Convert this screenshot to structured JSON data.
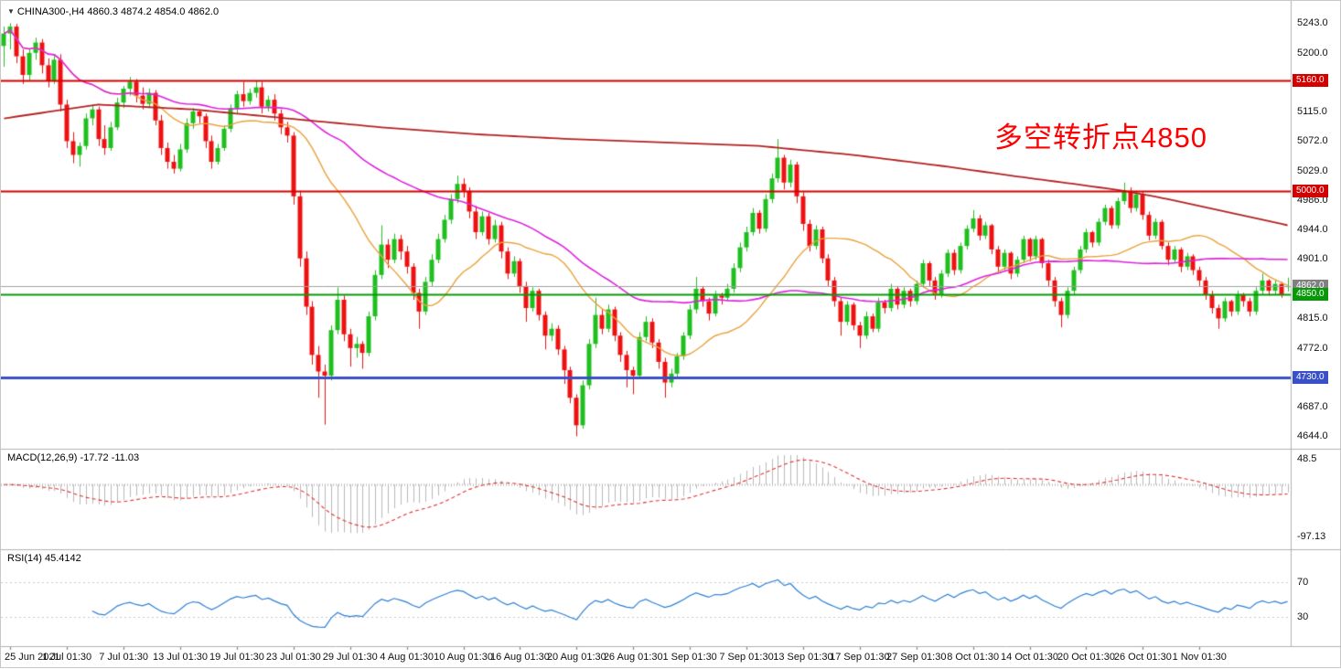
{
  "header": {
    "text": "CHINA300-,H4  4860.3 4874.2 4854.0 4862.0"
  },
  "annotation": {
    "text": "多空转折点4850",
    "color": "#FF0000"
  },
  "macd": {
    "header": "MACD(12,26,9) -17.72 -11.03",
    "axis_max": "48.5",
    "axis_min": "-97.13"
  },
  "rsi": {
    "header": "RSI(14) 45.4142",
    "axis_top": "70",
    "axis_bottom": "30"
  },
  "chart_data": {
    "type": "candlestick",
    "symbol": "CHINA300-",
    "timeframe": "H4",
    "current_bar": {
      "open": 4860.3,
      "high": 4874.2,
      "low": 4854.0,
      "close": 4862.0
    },
    "ylim": [
      4630,
      5270
    ],
    "y_ticks": [
      5243.0,
      5200.0,
      5115.0,
      5072.0,
      5029.0,
      4986.0,
      4944.0,
      4901.0,
      4815.0,
      4772.0,
      4687.0,
      4644.0
    ],
    "price_tags": [
      {
        "value": 5160.0,
        "label": "5160.0",
        "color": "#d40000",
        "line_width": 2
      },
      {
        "value": 5000.0,
        "label": "5000.0",
        "color": "#d40000",
        "line_width": 2
      },
      {
        "value": 4862.0,
        "label": "4862.0",
        "color": "#808080",
        "line_width": 1
      },
      {
        "value": 4850.0,
        "label": "4850.0",
        "color": "#089908",
        "line_width": 2
      },
      {
        "value": 4730.0,
        "label": "4730.0",
        "color": "#3a50c8",
        "line_width": 3
      }
    ],
    "x_labels": [
      {
        "index": 1,
        "label": "25 Jun 2021"
      },
      {
        "index": 10,
        "label": "1 Jul 01:30"
      },
      {
        "index": 19,
        "label": "7 Jul 01:30"
      },
      {
        "index": 28,
        "label": "13 Jul 01:30"
      },
      {
        "index": 37,
        "label": "19 Jul 01:30"
      },
      {
        "index": 46,
        "label": "23 Jul 01:30"
      },
      {
        "index": 55,
        "label": "29 Jul 01:30"
      },
      {
        "index": 64,
        "label": "4 Aug 01:30"
      },
      {
        "index": 73,
        "label": "10 Aug 01:30"
      },
      {
        "index": 82,
        "label": "16 Aug 01:30"
      },
      {
        "index": 91,
        "label": "20 Aug 01:30"
      },
      {
        "index": 100,
        "label": "26 Aug 01:30"
      },
      {
        "index": 109,
        "label": "1 Sep 01:30"
      },
      {
        "index": 118,
        "label": "7 Sep 01:30"
      },
      {
        "index": 127,
        "label": "13 Sep 01:30"
      },
      {
        "index": 136,
        "label": "17 Sep 01:30"
      },
      {
        "index": 145,
        "label": "27 Sep 01:30"
      },
      {
        "index": 154,
        "label": "8 Oct 01:30"
      },
      {
        "index": 163,
        "label": "14 Oct 01:30"
      },
      {
        "index": 172,
        "label": "20 Oct 01:30"
      },
      {
        "index": 181,
        "label": "26 Oct 01:30"
      },
      {
        "index": 190,
        "label": "1 Nov 01:30"
      }
    ],
    "colors": {
      "up": "#1fbf1f",
      "down": "#ee1111",
      "ma_fast": "#e9a23b",
      "ma_mid": "#dd22dd",
      "ma_slow": "#b22222",
      "macd_hist": "#b8b8b8",
      "macd_signal": "#e03030",
      "rsi": "#2c7fd4",
      "level": "#c8c8c8",
      "separator": "#b0b0b0",
      "current_price": "#a0a0a0"
    },
    "moving_averages": [
      {
        "period": 21,
        "color_key": "ma_fast"
      },
      {
        "period": 55,
        "color_key": "ma_mid"
      }
    ],
    "ma_slow_anchors": [
      [
        0,
        5105
      ],
      [
        15,
        5125
      ],
      [
        30,
        5118
      ],
      [
        45,
        5105
      ],
      [
        60,
        5092
      ],
      [
        75,
        5082
      ],
      [
        90,
        5075
      ],
      [
        105,
        5070
      ],
      [
        120,
        5065
      ],
      [
        135,
        5052
      ],
      [
        150,
        5035
      ],
      [
        160,
        5022
      ],
      [
        170,
        5010
      ],
      [
        178,
        5000
      ],
      [
        185,
        4988
      ],
      [
        195,
        4968
      ],
      [
        204,
        4950
      ]
    ],
    "macd": {
      "fast": 12,
      "slow": 26,
      "signal": 9,
      "display_value": -17.72,
      "display_signal": -11.03,
      "axis_max": 48.5,
      "axis_min": -97.13
    },
    "rsi": {
      "period": 14,
      "display_value": 45.4142,
      "levels": [
        70,
        30
      ]
    },
    "candles": [
      [
        5210,
        5238,
        5180,
        5228
      ],
      [
        5228,
        5243,
        5205,
        5238
      ],
      [
        5238,
        5242,
        5185,
        5195
      ],
      [
        5195,
        5205,
        5155,
        5168
      ],
      [
        5168,
        5206,
        5160,
        5200
      ],
      [
        5200,
        5222,
        5190,
        5215
      ],
      [
        5215,
        5220,
        5170,
        5182
      ],
      [
        5182,
        5192,
        5150,
        5160
      ],
      [
        5160,
        5196,
        5155,
        5190
      ],
      [
        5190,
        5198,
        5115,
        5125
      ],
      [
        5125,
        5132,
        5062,
        5072
      ],
      [
        5072,
        5085,
        5040,
        5052
      ],
      [
        5052,
        5070,
        5035,
        5065
      ],
      [
        5065,
        5112,
        5060,
        5105
      ],
      [
        5105,
        5125,
        5095,
        5118
      ],
      [
        5118,
        5122,
        5065,
        5075
      ],
      [
        5075,
        5095,
        5052,
        5062
      ],
      [
        5062,
        5100,
        5058,
        5092
      ],
      [
        5092,
        5135,
        5088,
        5128
      ],
      [
        5128,
        5152,
        5120,
        5148
      ],
      [
        5148,
        5165,
        5138,
        5158
      ],
      [
        5158,
        5162,
        5128,
        5138
      ],
      [
        5138,
        5150,
        5118,
        5126
      ],
      [
        5126,
        5148,
        5120,
        5142
      ],
      [
        5142,
        5146,
        5095,
        5102
      ],
      [
        5102,
        5110,
        5052,
        5062
      ],
      [
        5062,
        5070,
        5032,
        5042
      ],
      [
        5042,
        5052,
        5025,
        5032
      ],
      [
        5032,
        5068,
        5028,
        5060
      ],
      [
        5060,
        5105,
        5055,
        5098
      ],
      [
        5098,
        5120,
        5090,
        5115
      ],
      [
        5115,
        5118,
        5098,
        5108
      ],
      [
        5108,
        5112,
        5062,
        5072
      ],
      [
        5072,
        5080,
        5032,
        5042
      ],
      [
        5042,
        5068,
        5038,
        5062
      ],
      [
        5062,
        5095,
        5058,
        5090
      ],
      [
        5090,
        5125,
        5085,
        5120
      ],
      [
        5120,
        5145,
        5112,
        5140
      ],
      [
        5140,
        5158,
        5122,
        5130
      ],
      [
        5130,
        5148,
        5125,
        5142
      ],
      [
        5142,
        5160,
        5135,
        5150
      ],
      [
        5150,
        5158,
        5112,
        5122
      ],
      [
        5122,
        5138,
        5115,
        5132
      ],
      [
        5132,
        5140,
        5102,
        5112
      ],
      [
        5112,
        5118,
        5082,
        5092
      ],
      [
        5092,
        5100,
        5070,
        5080
      ],
      [
        5080,
        5085,
        4980,
        4992
      ],
      [
        4992,
        5000,
        4890,
        4902
      ],
      [
        4902,
        4912,
        4820,
        4832
      ],
      [
        4832,
        4840,
        4748,
        4762
      ],
      [
        4762,
        4775,
        4700,
        4738
      ],
      [
        4738,
        4748,
        4661,
        4732
      ],
      [
        4732,
        4805,
        4725,
        4798
      ],
      [
        4798,
        4860,
        4792,
        4842
      ],
      [
        4842,
        4848,
        4782,
        4792
      ],
      [
        4792,
        4800,
        4745,
        4772
      ],
      [
        4772,
        4788,
        4758,
        4778
      ],
      [
        4778,
        4782,
        4742,
        4765
      ],
      [
        4765,
        4825,
        4760,
        4818
      ],
      [
        4818,
        4885,
        4812,
        4878
      ],
      [
        4878,
        4950,
        4872,
        4922
      ],
      [
        4922,
        4930,
        4888,
        4900
      ],
      [
        4900,
        4938,
        4895,
        4930
      ],
      [
        4930,
        4936,
        4900,
        4912
      ],
      [
        4912,
        4920,
        4880,
        4890
      ],
      [
        4890,
        4895,
        4842,
        4852
      ],
      [
        4852,
        4858,
        4800,
        4825
      ],
      [
        4825,
        4875,
        4820,
        4868
      ],
      [
        4868,
        4908,
        4862,
        4900
      ],
      [
        4900,
        4938,
        4895,
        4930
      ],
      [
        4930,
        4965,
        4925,
        4958
      ],
      [
        4958,
        4995,
        4952,
        4988
      ],
      [
        4988,
        5022,
        4982,
        5010
      ],
      [
        5010,
        5018,
        4990,
        5000
      ],
      [
        5000,
        5005,
        4960,
        4970
      ],
      [
        4970,
        4978,
        4930,
        4940
      ],
      [
        4940,
        4970,
        4935,
        4963
      ],
      [
        4963,
        4968,
        4922,
        4930
      ],
      [
        4930,
        4958,
        4925,
        4950
      ],
      [
        4950,
        4955,
        4902,
        4912
      ],
      [
        4912,
        4918,
        4872,
        4880
      ],
      [
        4880,
        4905,
        4875,
        4898
      ],
      [
        4898,
        4902,
        4852,
        4862
      ],
      [
        4862,
        4868,
        4810,
        4830
      ],
      [
        4830,
        4860,
        4825,
        4855
      ],
      [
        4855,
        4858,
        4812,
        4820
      ],
      [
        4820,
        4825,
        4770,
        4790
      ],
      [
        4790,
        4808,
        4782,
        4800
      ],
      [
        4800,
        4805,
        4762,
        4770
      ],
      [
        4770,
        4775,
        4720,
        4740
      ],
      [
        4740,
        4745,
        4692,
        4700
      ],
      [
        4700,
        4705,
        4644,
        4660
      ],
      [
        4660,
        4725,
        4655,
        4718
      ],
      [
        4718,
        4785,
        4712,
        4778
      ],
      [
        4778,
        4845,
        4772,
        4820
      ],
      [
        4820,
        4828,
        4792,
        4800
      ],
      [
        4800,
        4835,
        4795,
        4828
      ],
      [
        4828,
        4832,
        4782,
        4790
      ],
      [
        4790,
        4795,
        4752,
        4762
      ],
      [
        4762,
        4768,
        4715,
        4740
      ],
      [
        4740,
        4745,
        4705,
        4732
      ],
      [
        4732,
        4795,
        4728,
        4788
      ],
      [
        4788,
        4818,
        4782,
        4810
      ],
      [
        4810,
        4815,
        4772,
        4780
      ],
      [
        4780,
        4785,
        4742,
        4752
      ],
      [
        4752,
        4758,
        4700,
        4722
      ],
      [
        4722,
        4742,
        4715,
        4735
      ],
      [
        4735,
        4765,
        4728,
        4760
      ],
      [
        4760,
        4795,
        4755,
        4790
      ],
      [
        4790,
        4835,
        4785,
        4828
      ],
      [
        4828,
        4875,
        4822,
        4858
      ],
      [
        4858,
        4862,
        4832,
        4840
      ],
      [
        4840,
        4845,
        4812,
        4822
      ],
      [
        4822,
        4855,
        4818,
        4848
      ],
      [
        4848,
        4852,
        4835,
        4845
      ],
      [
        4845,
        4865,
        4840,
        4858
      ],
      [
        4858,
        4895,
        4852,
        4888
      ],
      [
        4888,
        4925,
        4882,
        4918
      ],
      [
        4918,
        4948,
        4912,
        4940
      ],
      [
        4940,
        4975,
        4935,
        4968
      ],
      [
        4968,
        4972,
        4938,
        4945
      ],
      [
        4945,
        4995,
        4940,
        4988
      ],
      [
        4988,
        5025,
        4982,
        5018
      ],
      [
        5018,
        5075,
        5012,
        5048
      ],
      [
        5048,
        5052,
        5002,
        5012
      ],
      [
        5012,
        5045,
        5005,
        5038
      ],
      [
        5038,
        5042,
        4982,
        4992
      ],
      [
        4992,
        4998,
        4942,
        4952
      ],
      [
        4952,
        4958,
        4912,
        4920
      ],
      [
        4920,
        4950,
        4915,
        4944
      ],
      [
        4944,
        4948,
        4895,
        4902
      ],
      [
        4902,
        4908,
        4862,
        4870
      ],
      [
        4870,
        4875,
        4832,
        4840
      ],
      [
        4840,
        4845,
        4790,
        4810
      ],
      [
        4810,
        4840,
        4805,
        4835
      ],
      [
        4835,
        4838,
        4798,
        4805
      ],
      [
        4805,
        4810,
        4772,
        4790
      ],
      [
        4790,
        4825,
        4785,
        4818
      ],
      [
        4818,
        4822,
        4795,
        4800
      ],
      [
        4800,
        4845,
        4795,
        4838
      ],
      [
        4838,
        4842,
        4822,
        4830
      ],
      [
        4830,
        4865,
        4825,
        4858
      ],
      [
        4858,
        4862,
        4828,
        4835
      ],
      [
        4835,
        4860,
        4830,
        4855
      ],
      [
        4855,
        4858,
        4832,
        4840
      ],
      [
        4840,
        4870,
        4835,
        4865
      ],
      [
        4865,
        4900,
        4860,
        4895
      ],
      [
        4895,
        4898,
        4862,
        4870
      ],
      [
        4870,
        4875,
        4842,
        4850
      ],
      [
        4850,
        4885,
        4845,
        4880
      ],
      [
        4880,
        4915,
        4875,
        4910
      ],
      [
        4910,
        4915,
        4878,
        4885
      ],
      [
        4885,
        4925,
        4880,
        4920
      ],
      [
        4920,
        4950,
        4915,
        4945
      ],
      [
        4945,
        4972,
        4940,
        4960
      ],
      [
        4960,
        4965,
        4928,
        4935
      ],
      [
        4935,
        4955,
        4930,
        4950
      ],
      [
        4950,
        4952,
        4908,
        4915
      ],
      [
        4915,
        4920,
        4882,
        4890
      ],
      [
        4890,
        4915,
        4885,
        4910
      ],
      [
        4910,
        4912,
        4872,
        4880
      ],
      [
        4880,
        4905,
        4875,
        4900
      ],
      [
        4900,
        4935,
        4895,
        4930
      ],
      [
        4930,
        4932,
        4898,
        4905
      ],
      [
        4905,
        4935,
        4900,
        4930
      ],
      [
        4930,
        4932,
        4888,
        4895
      ],
      [
        4895,
        4900,
        4862,
        4870
      ],
      [
        4870,
        4875,
        4832,
        4840
      ],
      [
        4840,
        4845,
        4802,
        4820
      ],
      [
        4820,
        4860,
        4815,
        4855
      ],
      [
        4855,
        4890,
        4850,
        4885
      ],
      [
        4885,
        4920,
        4880,
        4915
      ],
      [
        4915,
        4945,
        4910,
        4940
      ],
      [
        4940,
        4942,
        4918,
        4925
      ],
      [
        4925,
        4960,
        4920,
        4955
      ],
      [
        4955,
        4980,
        4950,
        4975
      ],
      [
        4975,
        4978,
        4945,
        4950
      ],
      [
        4950,
        4990,
        4945,
        4985
      ],
      [
        4985,
        5012,
        4980,
        5000
      ],
      [
        5000,
        5005,
        4968,
        4975
      ],
      [
        4975,
        5000,
        4970,
        4995
      ],
      [
        4995,
        4998,
        4958,
        4965
      ],
      [
        4965,
        4970,
        4928,
        4935
      ],
      [
        4935,
        4960,
        4930,
        4955
      ],
      [
        4955,
        4958,
        4915,
        4920
      ],
      [
        4920,
        4925,
        4892,
        4900
      ],
      [
        4900,
        4920,
        4895,
        4915
      ],
      [
        4915,
        4918,
        4882,
        4890
      ],
      [
        4890,
        4910,
        4885,
        4905
      ],
      [
        4905,
        4908,
        4878,
        4885
      ],
      [
        4885,
        4890,
        4862,
        4870
      ],
      [
        4870,
        4875,
        4842,
        4850
      ],
      [
        4850,
        4855,
        4822,
        4830
      ],
      [
        4830,
        4835,
        4800,
        4815
      ],
      [
        4815,
        4845,
        4810,
        4840
      ],
      [
        4840,
        4842,
        4818,
        4825
      ],
      [
        4825,
        4855,
        4820,
        4850
      ],
      [
        4850,
        4852,
        4832,
        4840
      ],
      [
        4840,
        4845,
        4818,
        4825
      ],
      [
        4825,
        4860,
        4820,
        4855
      ],
      [
        4855,
        4880,
        4850,
        4870
      ],
      [
        4870,
        4872,
        4848,
        4855
      ],
      [
        4855,
        4870,
        4850,
        4865
      ],
      [
        4865,
        4868,
        4845,
        4850
      ],
      [
        4860.3,
        4874.2,
        4854.0,
        4862.0
      ]
    ]
  }
}
